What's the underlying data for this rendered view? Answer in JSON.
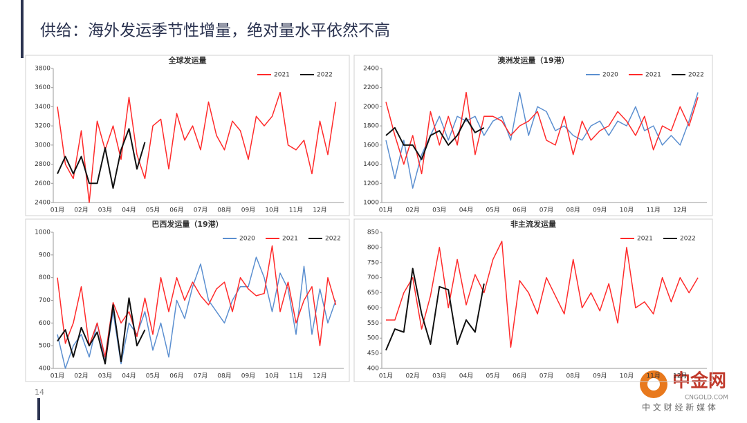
{
  "slide_title": "供给：海外发运季节性增量，绝对量水平依然不高",
  "page_number": "14",
  "watermark": {
    "name": "中金网",
    "site": "CNGOLD.COM",
    "slogan": "中 文 财 经 新 媒 体"
  },
  "chart_data": [
    {
      "type": "line",
      "title": "全球发运量",
      "categories": [
        "01月",
        null,
        null,
        "02月",
        null,
        null,
        "03月",
        null,
        null,
        "04月",
        null,
        null,
        "05月",
        null,
        null,
        "06月",
        null,
        null,
        "07月",
        null,
        null,
        "08月",
        null,
        null,
        "09月",
        null,
        null,
        "10月",
        null,
        null,
        "11月",
        null,
        null,
        "12月",
        null,
        null
      ],
      "ylim": [
        2400,
        3800
      ],
      "yticks": [
        2400,
        2600,
        2800,
        3000,
        3200,
        3400,
        3600,
        3800
      ],
      "series": [
        {
          "name": "2021",
          "color": "#ff2a2a",
          "values": [
            3400,
            2800,
            2650,
            3150,
            2400,
            3250,
            2950,
            3200,
            2850,
            3500,
            2900,
            2650,
            3200,
            3270,
            2750,
            3330,
            3050,
            3200,
            2950,
            3450,
            3100,
            2950,
            3250,
            3150,
            2850,
            3300,
            3200,
            3300,
            3550,
            3000,
            2950,
            3050,
            2700,
            3250,
            2900,
            3450
          ]
        },
        {
          "name": "2022",
          "color": "#111111",
          "values": [
            2700,
            2880,
            2700,
            2880,
            2600,
            2600,
            2970,
            2550,
            2950,
            3170,
            2750,
            3030,
            null,
            null,
            null,
            null,
            null,
            null,
            null,
            null,
            null,
            null,
            null,
            null,
            null,
            null,
            null,
            null,
            null,
            null,
            null,
            null,
            null,
            null,
            null,
            null
          ]
        }
      ]
    },
    {
      "type": "line",
      "title": "澳洲发运量（19港）",
      "categories": [
        "01月",
        null,
        null,
        "02月",
        null,
        null,
        "03月",
        null,
        null,
        "04月",
        null,
        null,
        "05月",
        null,
        null,
        "06月",
        null,
        null,
        "07月",
        null,
        null,
        "08月",
        null,
        null,
        "09月",
        null,
        null,
        "10月",
        null,
        null,
        "11月",
        null,
        null,
        "12月",
        null,
        null
      ],
      "ylim": [
        1000,
        2400
      ],
      "yticks": [
        1000,
        1200,
        1400,
        1600,
        1800,
        2000,
        2200,
        2400
      ],
      "series": [
        {
          "name": "2020",
          "color": "#5b8fd0",
          "values": [
            1650,
            1250,
            1650,
            1150,
            1500,
            1700,
            1900,
            1650,
            1900,
            1850,
            1900,
            1700,
            1850,
            1900,
            1650,
            2150,
            1700,
            2000,
            1950,
            1750,
            1800,
            1700,
            1650,
            1800,
            1850,
            1700,
            1850,
            1800,
            2000,
            1750,
            1800,
            1600,
            1700,
            1600,
            1850,
            2150
          ]
        },
        {
          "name": "2021",
          "color": "#ff2a2a",
          "values": [
            2050,
            1700,
            1400,
            1700,
            1300,
            1950,
            1600,
            1900,
            1600,
            2150,
            1500,
            1900,
            1900,
            1850,
            1700,
            1800,
            1850,
            1950,
            1650,
            1600,
            1900,
            1500,
            1850,
            1650,
            1750,
            1800,
            1950,
            1850,
            1700,
            1900,
            1550,
            1800,
            1750,
            2000,
            1800,
            2100
          ]
        },
        {
          "name": "2022",
          "color": "#111111",
          "values": [
            1700,
            1780,
            1600,
            1600,
            1450,
            1700,
            1750,
            1600,
            1700,
            1880,
            1730,
            1780,
            null,
            null,
            null,
            null,
            null,
            null,
            null,
            null,
            null,
            null,
            null,
            null,
            null,
            null,
            null,
            null,
            null,
            null,
            null,
            null,
            null,
            null,
            null,
            null
          ]
        }
      ]
    },
    {
      "type": "line",
      "title": "巴西发运量（19港）",
      "categories": [
        "01月",
        null,
        null,
        "02月",
        null,
        null,
        "03月",
        null,
        null,
        "04月",
        null,
        null,
        "05月",
        null,
        null,
        "06月",
        null,
        null,
        "07月",
        null,
        null,
        "08月",
        null,
        null,
        "09月",
        null,
        null,
        "10月",
        null,
        null,
        "11月",
        null,
        null,
        "12月",
        null,
        null
      ],
      "ylim": [
        400,
        1000
      ],
      "yticks": [
        400,
        500,
        600,
        700,
        800,
        900,
        1000
      ],
      "series": [
        {
          "name": "2020",
          "color": "#5b8fd0",
          "values": [
            550,
            400,
            500,
            550,
            450,
            600,
            430,
            650,
            420,
            600,
            550,
            650,
            480,
            600,
            450,
            700,
            620,
            760,
            860,
            700,
            650,
            600,
            700,
            760,
            760,
            890,
            800,
            650,
            820,
            750,
            550,
            850,
            550,
            750,
            600,
            700
          ]
        },
        {
          "name": "2021",
          "color": "#ff2a2a",
          "values": [
            800,
            510,
            600,
            760,
            500,
            600,
            450,
            690,
            600,
            650,
            540,
            710,
            550,
            800,
            650,
            800,
            700,
            780,
            720,
            680,
            750,
            780,
            650,
            800,
            750,
            720,
            730,
            940,
            650,
            780,
            600,
            700,
            760,
            500,
            800,
            680
          ]
        },
        {
          "name": "2022",
          "color": "#111111",
          "values": [
            520,
            570,
            450,
            580,
            500,
            560,
            420,
            680,
            430,
            710,
            500,
            570,
            null,
            null,
            null,
            null,
            null,
            null,
            null,
            null,
            null,
            null,
            null,
            null,
            null,
            null,
            null,
            null,
            null,
            null,
            null,
            null,
            null,
            null,
            null,
            null
          ]
        }
      ]
    },
    {
      "type": "line",
      "title": "非主流发运量",
      "categories": [
        "01月",
        null,
        null,
        "02月",
        null,
        null,
        "03月",
        null,
        null,
        "04月",
        null,
        null,
        "05月",
        null,
        null,
        "06月",
        null,
        null,
        "07月",
        null,
        null,
        "08月",
        null,
        null,
        "09月",
        null,
        null,
        "10月",
        null,
        null,
        "11月",
        null,
        null,
        "12月",
        null,
        null
      ],
      "ylim": [
        400,
        850
      ],
      "yticks": [
        400,
        450,
        500,
        550,
        600,
        650,
        700,
        750,
        800,
        850
      ],
      "series": [
        {
          "name": "2021",
          "color": "#ff2a2a",
          "values": [
            560,
            560,
            650,
            700,
            530,
            640,
            800,
            600,
            760,
            610,
            710,
            650,
            760,
            820,
            470,
            690,
            650,
            580,
            700,
            640,
            580,
            760,
            600,
            650,
            590,
            680,
            550,
            800,
            600,
            620,
            580,
            700,
            620,
            700,
            650,
            700
          ]
        },
        {
          "name": "2022",
          "color": "#111111",
          "values": [
            460,
            530,
            520,
            730,
            580,
            480,
            670,
            660,
            480,
            560,
            520,
            680,
            null,
            null,
            null,
            null,
            null,
            null,
            null,
            null,
            null,
            null,
            null,
            null,
            null,
            null,
            null,
            null,
            null,
            null,
            null,
            null,
            null,
            null,
            null,
            null
          ]
        }
      ]
    }
  ]
}
